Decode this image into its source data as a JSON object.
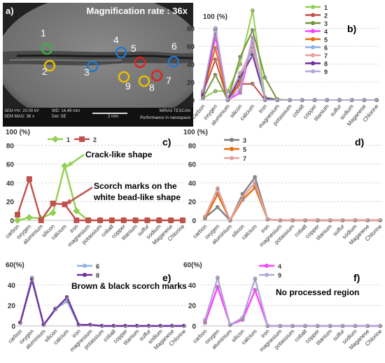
{
  "sem": {
    "label": "a)",
    "magnification": "Magnification rate : 36x",
    "footer_left": [
      "SEM HV: 20.00 kV",
      "SEM MAG: 36 x"
    ],
    "footer_mid": [
      "WD: 14.49 mm",
      "Det: SE"
    ],
    "scale": "2 mm",
    "footer_right": [
      "MIRA3 TESCAN",
      "Performance in nanospace"
    ],
    "spots": [
      {
        "label": "1",
        "color": "#3cb043"
      },
      {
        "label": "2",
        "color": "#e8c000"
      },
      {
        "label": "3",
        "color": "#2277cc"
      },
      {
        "label": "4",
        "color": "#e8c000"
      },
      {
        "label": "5",
        "color": "#2277cc"
      },
      {
        "label": "6",
        "color": "#dd2222"
      },
      {
        "label": "7",
        "color": "#2277cc"
      },
      {
        "label": "8",
        "color": "#dd2222"
      },
      {
        "label": "9",
        "color": "#e8c000"
      }
    ]
  },
  "chart_data": [
    {
      "panel": "b)",
      "type": "line",
      "ylabel": "100 (%)",
      "ylim": [
        0,
        100
      ],
      "yticks": [
        0,
        20,
        40,
        60,
        80
      ],
      "categories": [
        "carbon",
        "oxygen",
        "aluminium",
        "silicon",
        "calcium",
        "iron",
        "magnesium",
        "potassium",
        "cobalt",
        "copper",
        "titanium",
        "sulfur",
        "sodium",
        "Maganese",
        "Chlorine"
      ],
      "legend_position": "right",
      "series": [
        {
          "name": "1",
          "color": "#92d050",
          "values": [
            2,
            10,
            10,
            40,
            100,
            3,
            1,
            0,
            0,
            0,
            0,
            0,
            0,
            0,
            0
          ]
        },
        {
          "name": "2",
          "color": "#c0504d",
          "values": [
            8,
            45,
            0,
            18,
            18,
            0,
            0,
            0,
            0,
            0,
            0,
            0,
            0,
            0,
            0
          ]
        },
        {
          "name": "3",
          "color": "#77933c",
          "values": [
            3,
            28,
            0,
            48,
            78,
            25,
            0,
            0,
            0,
            0,
            0,
            0,
            0,
            0,
            0
          ]
        },
        {
          "name": "4",
          "color": "#ff40ff",
          "values": [
            3,
            70,
            0,
            8,
            66,
            0,
            0,
            0,
            0,
            0,
            0,
            0,
            0,
            0,
            0
          ]
        },
        {
          "name": "5",
          "color": "#e46c0a",
          "values": [
            8,
            58,
            0,
            20,
            60,
            0,
            0,
            0,
            0,
            0,
            0,
            0,
            0,
            0,
            0
          ]
        },
        {
          "name": "6",
          "color": "#8eb4e3",
          "values": [
            5,
            80,
            0,
            30,
            55,
            2,
            0,
            0,
            0,
            0,
            0,
            0,
            0,
            0,
            0
          ]
        },
        {
          "name": "7",
          "color": "#e6a0a0",
          "values": [
            10,
            75,
            0,
            28,
            60,
            1,
            0,
            0,
            0,
            0,
            0,
            0,
            0,
            0,
            0
          ]
        },
        {
          "name": "8",
          "color": "#7030a0",
          "values": [
            5,
            78,
            0,
            25,
            50,
            2,
            0,
            0,
            0,
            0,
            0,
            0,
            0,
            0,
            0
          ]
        },
        {
          "name": "9",
          "color": "#b4a7d6",
          "values": [
            10,
            80,
            0,
            12,
            70,
            0,
            0,
            0,
            0,
            0,
            0,
            0,
            0,
            0,
            0
          ]
        }
      ]
    },
    {
      "panel": "c)",
      "type": "line",
      "ylabel": "100 (%)",
      "ylim": [
        0,
        100
      ],
      "yticks": [
        0,
        20,
        40,
        60,
        80
      ],
      "categories": [
        "carbon",
        "oxygen",
        "aluminium",
        "silicon",
        "calcium",
        "iron",
        "magnesium",
        "potassium",
        "cobalt",
        "copper",
        "titanium",
        "sulfur",
        "sodium",
        "Maganese",
        "Chlorine"
      ],
      "legend_position": "top",
      "annotations": [
        "Crack-like shape",
        "Scorch marks on the white bead-like shape"
      ],
      "series": [
        {
          "name": "1",
          "color": "#92d050",
          "marker": "diamond",
          "values": [
            0,
            3,
            2,
            8,
            58,
            10,
            0,
            0,
            0,
            0,
            0,
            0,
            0,
            0,
            0
          ]
        },
        {
          "name": "2",
          "color": "#c0504d",
          "marker": "square",
          "values": [
            6,
            44,
            0,
            18,
            17,
            0,
            0,
            0,
            0,
            0,
            0,
            0,
            0,
            0,
            0
          ]
        }
      ]
    },
    {
      "panel": "d)",
      "type": "line",
      "ylabel": "100 (%)",
      "ylim": [
        0,
        100
      ],
      "yticks": [
        0,
        20,
        40,
        60,
        80
      ],
      "categories": [
        "carbon",
        "oxygen",
        "aluminium",
        "silicon",
        "calcium",
        "iron",
        "magnesium",
        "potassium",
        "cobalt",
        "copper",
        "titanium",
        "sulfur",
        "sodium",
        "Maganese",
        "Chlorine"
      ],
      "legend_position": "top",
      "series": [
        {
          "name": "3",
          "color": "#7f7f7f",
          "values": [
            3,
            14,
            0,
            28,
            46,
            1,
            0,
            0,
            0,
            0,
            0,
            0,
            0,
            0,
            0
          ]
        },
        {
          "name": "5",
          "color": "#e46c0a",
          "values": [
            2,
            28,
            0,
            22,
            35,
            1,
            0,
            0,
            0,
            0,
            0,
            0,
            0,
            0,
            0
          ]
        },
        {
          "name": "7",
          "color": "#e6a0a0",
          "values": [
            4,
            34,
            0,
            25,
            40,
            1,
            0,
            0,
            0,
            0,
            0,
            0,
            0,
            0,
            0
          ]
        }
      ]
    },
    {
      "panel": "e)",
      "type": "line",
      "ylabel": "60(%)",
      "ylim": [
        0,
        60
      ],
      "yticks": [
        0,
        20,
        40
      ],
      "categories": [
        "carbon",
        "oxygen",
        "aluminium",
        "silicon",
        "calcium",
        "iron",
        "magnesium",
        "potassium",
        "cobalt",
        "copper",
        "titanium",
        "sulfur",
        "sodium",
        "Maganese",
        "Chlorine"
      ],
      "legend_position": "top",
      "annotations": [
        "Brown & black scorch marks"
      ],
      "series": [
        {
          "name": "6",
          "color": "#8eb4e3",
          "values": [
            3,
            47,
            1,
            17,
            24,
            1,
            1,
            0,
            0,
            0,
            0,
            0,
            0,
            0,
            0
          ]
        },
        {
          "name": "8",
          "color": "#7030a0",
          "values": [
            3,
            45,
            1,
            16,
            28,
            1,
            1,
            0,
            0,
            0,
            0,
            0,
            0,
            0,
            0
          ]
        }
      ]
    },
    {
      "panel": "f)",
      "type": "line",
      "ylabel": "60(%)",
      "ylim": [
        0,
        60
      ],
      "yticks": [
        0,
        20,
        40
      ],
      "categories": [
        "carbon",
        "oxygen",
        "aluminium",
        "silicon",
        "calcium",
        "iron",
        "magnesium",
        "potassium",
        "cobalt",
        "copper",
        "titanium",
        "sulfur",
        "sodium",
        "Maganese",
        "Chlorine"
      ],
      "legend_position": "top",
      "annotations": [
        "No processed region"
      ],
      "series": [
        {
          "name": "4",
          "color": "#ff40ff",
          "values": [
            3,
            38,
            1,
            6,
            35,
            0,
            0,
            0,
            0,
            0,
            0,
            0,
            0,
            0,
            0
          ]
        },
        {
          "name": "9",
          "color": "#b4a7d6",
          "values": [
            6,
            47,
            1,
            8,
            46,
            0,
            0,
            0,
            0,
            0,
            0,
            0,
            0,
            0,
            0
          ]
        }
      ]
    }
  ]
}
